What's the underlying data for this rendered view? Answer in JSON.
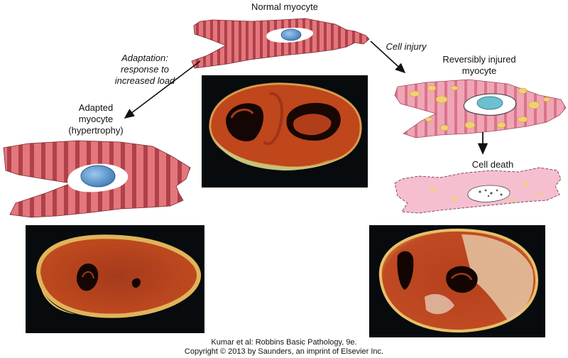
{
  "labels": {
    "normal": "Normal myocyte",
    "cell_injury": "Cell injury",
    "reversibly_injured": [
      "Reversibly injured",
      "myocyte"
    ],
    "adaptation": [
      "Adaptation:",
      "response to",
      "increased load"
    ],
    "adapted": [
      "Adapted",
      "myocyte",
      "(hypertrophy)"
    ],
    "cell_death": "Cell death"
  },
  "credit": {
    "line1": "Kumar et al: Robbins Basic Pathology, 9e.",
    "line2": "Copyright © 2013  by Saunders, an imprint of Elsevier Inc."
  },
  "colors": {
    "muscle_light": "#e3757a",
    "muscle_dark": "#a8323c",
    "nucleus": "#5b97cf",
    "injured_cell": "#f0a5b6",
    "vacuole": "#f2d072",
    "dead_cell": "#f5bfd0",
    "photo_bg": "#070b0e",
    "tissue": "#b53c18"
  }
}
